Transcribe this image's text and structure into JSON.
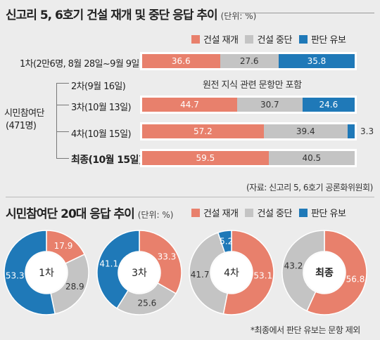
{
  "colors": {
    "construct": "#e8806c",
    "stop": "#c4c4c4",
    "undecided": "#1f79b8"
  },
  "chart_data": [
    {
      "type": "bar",
      "title": "신고리 5, 6호기 건설 재개 및 중단 응답 추이",
      "unit": "(단위: %)",
      "legend": [
        "건설 재개",
        "건설 중단",
        "판단 유보"
      ],
      "group_label": "시민참여단\n(471명)",
      "group_label_line1": "시민참여단",
      "group_label_line2": "(471명)",
      "rows": [
        {
          "label": "1차(2만6명, 8월 28일~9월 9일)",
          "values": [
            36.6,
            27.6,
            35.8
          ],
          "display": [
            "36.6",
            "27.6",
            "35.8"
          ]
        },
        {
          "label": "2차(9월 16일)",
          "values": null,
          "note": "원전 지식 관련 문항만 포함"
        },
        {
          "label": "3차(10월 13일)",
          "values": [
            44.7,
            30.7,
            24.6
          ],
          "display": [
            "44.7",
            "30.7",
            "24.6"
          ]
        },
        {
          "label": "4차(10월 15일)",
          "values": [
            57.2,
            39.4,
            3.3
          ],
          "display": [
            "57.2",
            "39.4",
            "3.3"
          ]
        },
        {
          "label": "최종(10월 15일)",
          "values": [
            59.5,
            40.5,
            0
          ],
          "display": [
            "59.5",
            "40.5",
            ""
          ]
        }
      ],
      "source": "(자료: 신고리 5, 6호기 공론화위원회)"
    },
    {
      "type": "pie",
      "title": "시민참여단 20대 응답 추이",
      "unit": "(단위: %)",
      "legend": [
        "건설 재개",
        "건설 중단",
        "판단 유보"
      ],
      "donuts": [
        {
          "label": "1차",
          "values": [
            17.9,
            28.9,
            53.3
          ],
          "display": [
            "17.9",
            "28.9",
            "53.3"
          ]
        },
        {
          "label": "3차",
          "values": [
            33.3,
            25.6,
            41.1
          ],
          "display": [
            "33.3",
            "25.6",
            "41.1"
          ]
        },
        {
          "label": "4차",
          "values": [
            53.1,
            41.7,
            5.2
          ],
          "display": [
            "53.1",
            "41.7",
            "5.2"
          ]
        },
        {
          "label": "최종",
          "values": [
            56.8,
            43.2,
            0
          ],
          "display": [
            "56.8",
            "43.2",
            ""
          ]
        }
      ],
      "footnote": "*최종에서 판단 유보는 문항 제외"
    }
  ]
}
